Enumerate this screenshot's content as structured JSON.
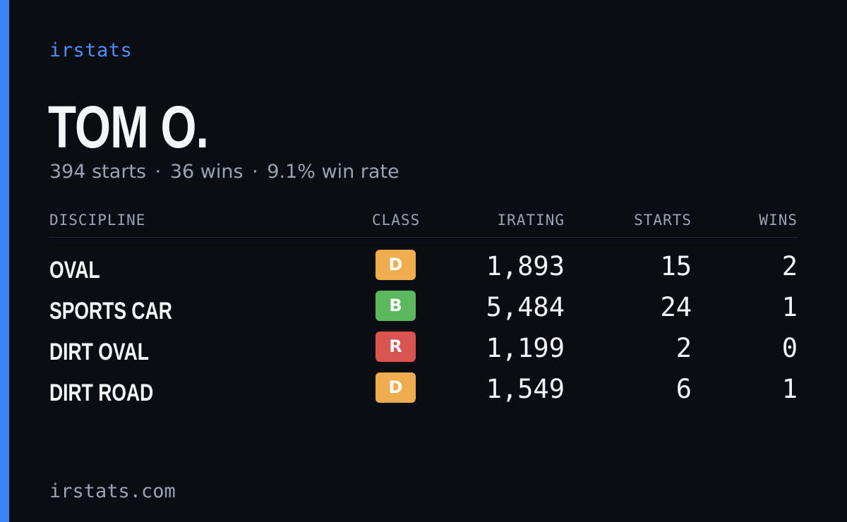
{
  "brand": "irstats",
  "player": {
    "name": "TOM O.",
    "starts_text": "394 starts",
    "wins_text": "36 wins",
    "win_rate_text": "9.1% win rate",
    "separator": "·"
  },
  "table": {
    "headers": {
      "discipline": "DISCIPLINE",
      "class": "CLASS",
      "irating": "IRATING",
      "starts": "STARTS",
      "wins": "WINS"
    },
    "rows": [
      {
        "discipline": "OVAL",
        "class": "D",
        "class_color": "#f0ad4e",
        "irating": "1,893",
        "starts": "15",
        "wins": "2"
      },
      {
        "discipline": "SPORTS CAR",
        "class": "B",
        "class_color": "#5cb85c",
        "irating": "5,484",
        "starts": "24",
        "wins": "1"
      },
      {
        "discipline": "DIRT OVAL",
        "class": "R",
        "class_color": "#d9534f",
        "irating": "1,199",
        "starts": "2",
        "wins": "0"
      },
      {
        "discipline": "DIRT ROAD",
        "class": "D",
        "class_color": "#f0ad4e",
        "irating": "1,549",
        "starts": "6",
        "wins": "1"
      }
    ]
  },
  "footer": "irstats.com",
  "colors": {
    "background": "#0a0d14",
    "accent": "#3b82f6",
    "brand_text": "#4d8ef8",
    "text_primary": "#f5f6f8",
    "text_secondary": "#9aa3b2"
  }
}
